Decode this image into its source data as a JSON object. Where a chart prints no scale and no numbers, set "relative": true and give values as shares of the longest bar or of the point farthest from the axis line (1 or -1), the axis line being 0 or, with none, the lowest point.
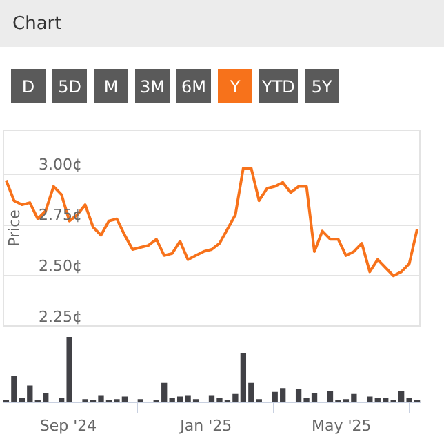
{
  "chart_data": [
    {
      "type": "line",
      "title": "Chart",
      "annotations": [
        "D",
        "5D",
        "M",
        "3M",
        "6M",
        "Y",
        "YTD",
        "5Y"
      ],
      "ylabel": "Price",
      "color": "#f7721b",
      "x": [
        "2024-07-08",
        "2024-07-15",
        "2024-07-22",
        "2024-07-29",
        "2024-08-05",
        "2024-08-12",
        "2024-08-19",
        "2024-08-26",
        "2024-09-02",
        "2024-09-09",
        "2024-09-16",
        "2024-09-23",
        "2024-09-30",
        "2024-10-07",
        "2024-10-14",
        "2024-10-21",
        "2024-10-28",
        "2024-11-04",
        "2024-11-11",
        "2024-11-18",
        "2024-11-25",
        "2024-12-02",
        "2024-12-09",
        "2024-12-16",
        "2024-12-23",
        "2024-12-30",
        "2025-01-06",
        "2025-01-13",
        "2025-01-20",
        "2025-01-27",
        "2025-02-03",
        "2025-02-10",
        "2025-02-17",
        "2025-02-24",
        "2025-03-03",
        "2025-03-10",
        "2025-03-17",
        "2025-03-24",
        "2025-03-31",
        "2025-04-07",
        "2025-04-14",
        "2025-04-21",
        "2025-04-28",
        "2025-05-05",
        "2025-05-12",
        "2025-05-19",
        "2025-05-26",
        "2025-06-02",
        "2025-06-09",
        "2025-06-16",
        "2025-06-23",
        "2025-06-30",
        "2025-07-07"
      ],
      "values": [
        2.97,
        2.87,
        2.85,
        2.86,
        2.78,
        2.82,
        2.94,
        2.9,
        2.77,
        2.8,
        2.85,
        2.74,
        2.7,
        2.77,
        2.78,
        2.7,
        2.63,
        2.64,
        2.65,
        2.68,
        2.6,
        2.61,
        2.67,
        2.58,
        2.6,
        2.62,
        2.63,
        2.66,
        2.73,
        2.8,
        3.03,
        3.03,
        2.87,
        2.93,
        2.94,
        2.96,
        2.91,
        2.94,
        2.94,
        2.62,
        2.72,
        2.68,
        2.68,
        2.6,
        2.62,
        2.66,
        2.52,
        2.58,
        2.54,
        2.5,
        2.52,
        2.56,
        2.73
      ],
      "xlim": [
        "2024-07-05",
        "2025-07-10"
      ],
      "ylim": [
        2.25,
        3.22
      ],
      "yticks": [
        {
          "value": 2.25,
          "label": "2.25¢"
        },
        {
          "value": 2.5,
          "label": "2.50¢"
        },
        {
          "value": 2.75,
          "label": "2.75¢"
        },
        {
          "value": 3,
          "label": "3.00¢"
        }
      ],
      "grid": "y",
      "tick_labels": "y",
      "legend": false,
      "marker": "none",
      "line_style": "solid"
    },
    {
      "type": "bar",
      "relative": true,
      "color": "#414146",
      "x": [
        "2024-07-08",
        "2024-07-15",
        "2024-07-22",
        "2024-07-29",
        "2024-08-05",
        "2024-08-12",
        "2024-08-19",
        "2024-08-26",
        "2024-09-02",
        "2024-09-09",
        "2024-09-16",
        "2024-09-23",
        "2024-09-30",
        "2024-10-07",
        "2024-10-14",
        "2024-10-21",
        "2024-10-28",
        "2024-11-04",
        "2024-11-11",
        "2024-11-18",
        "2024-11-25",
        "2024-12-02",
        "2024-12-09",
        "2024-12-16",
        "2024-12-23",
        "2024-12-30",
        "2025-01-06",
        "2025-01-13",
        "2025-01-20",
        "2025-01-27",
        "2025-02-03",
        "2025-02-10",
        "2025-02-17",
        "2025-02-24",
        "2025-03-03",
        "2025-03-10",
        "2025-03-17",
        "2025-03-24",
        "2025-03-31",
        "2025-04-07",
        "2025-04-14",
        "2025-04-21",
        "2025-04-28",
        "2025-05-05",
        "2025-05-12",
        "2025-05-19",
        "2025-05-26",
        "2025-06-02",
        "2025-06-09",
        "2025-06-16",
        "2025-06-23",
        "2025-06-30",
        "2025-07-07"
      ],
      "values": [
        0.02,
        0.4,
        0.06,
        0.25,
        0.02,
        0.13,
        0,
        0.06,
        1,
        0,
        0.04,
        0.02,
        0.1,
        0.02,
        0.04,
        0.08,
        0,
        0.04,
        0,
        0.02,
        0.29,
        0.06,
        0.08,
        0.1,
        0.04,
        0,
        0.1,
        0.06,
        0.02,
        0.12,
        0.75,
        0.29,
        0.04,
        0,
        0.15,
        0.21,
        0,
        0.19,
        0.06,
        0.13,
        0,
        0.17,
        0.02,
        0.04,
        0.12,
        0,
        0.08,
        0.06,
        0.06,
        0.02,
        0.17,
        0.06,
        0.02
      ],
      "xlim": [
        "2024-07-05",
        "2025-07-10"
      ],
      "xticks": [
        {
          "value": "2024-09-01",
          "label": "Sep '24"
        },
        {
          "value": "2025-01-01",
          "label": "Jan '25"
        },
        {
          "value": "2025-05-01",
          "label": "May '25"
        }
      ],
      "grid": false,
      "tick_labels": "x",
      "legend": false
    }
  ]
}
